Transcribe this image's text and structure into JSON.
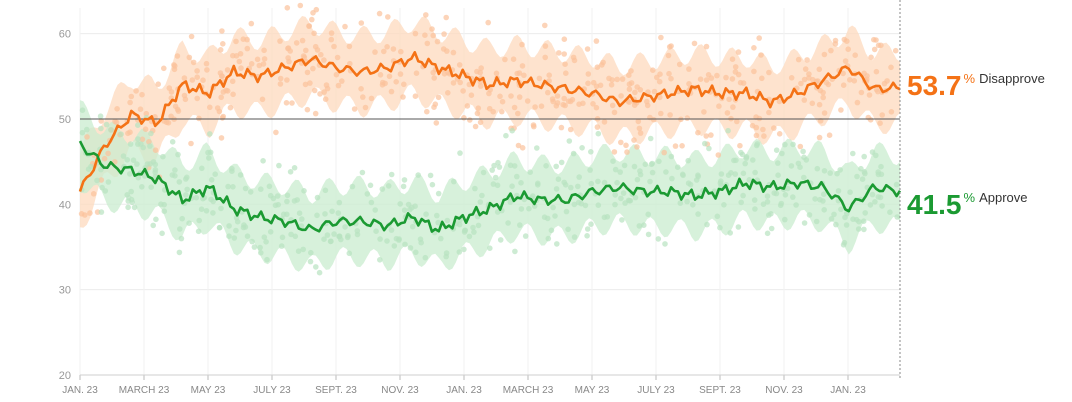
{
  "chart_data": {
    "type": "line",
    "x_tick_labels": [
      "JAN. 23",
      "MARCH 23",
      "MAY 23",
      "JULY 23",
      "SEPT. 23",
      "NOV. 23",
      "JAN. 23",
      "MARCH 23",
      "MAY 23",
      "JULY 23",
      "SEPT. 23",
      "NOV. 23",
      "JAN. 23"
    ],
    "y_ticks": [
      20,
      30,
      40,
      50,
      60
    ],
    "ylim": [
      20,
      63
    ],
    "reference_line": 50,
    "grid": true,
    "series": [
      {
        "name": "Disapprove",
        "color": "#f47216",
        "band_color": "#fdd9bd",
        "dot_color": "#fbc29b",
        "current_value": "53.7",
        "values": [
          41.5,
          47,
          50.5,
          49.5,
          54,
          53,
          55.5,
          55,
          56,
          57,
          56,
          55.5,
          56,
          57.2,
          56,
          55,
          54,
          54.5,
          54,
          53.5,
          53,
          52,
          52.5,
          53,
          53.5,
          53,
          53,
          52,
          53,
          54.5,
          56,
          53.5,
          53.7
        ]
      },
      {
        "name": "Approve",
        "color": "#1b9a32",
        "band_color": "#c9eccf",
        "dot_color": "#b8e3c1",
        "current_value": "41.5",
        "values": [
          47,
          44.5,
          44,
          43,
          40.5,
          42,
          39.5,
          38.5,
          38,
          37,
          38,
          38,
          37.5,
          38.5,
          37,
          38.5,
          39.5,
          41,
          40.5,
          40.5,
          41.5,
          42,
          41.5,
          41.5,
          41,
          41.5,
          42.5,
          42,
          42.5,
          42,
          39.5,
          42,
          41.5
        ]
      }
    ],
    "legend": [
      {
        "value": "53.7",
        "unit": "%",
        "label": "Disapprove"
      },
      {
        "value": "41.5",
        "unit": "%",
        "label": "Approve"
      }
    ]
  }
}
